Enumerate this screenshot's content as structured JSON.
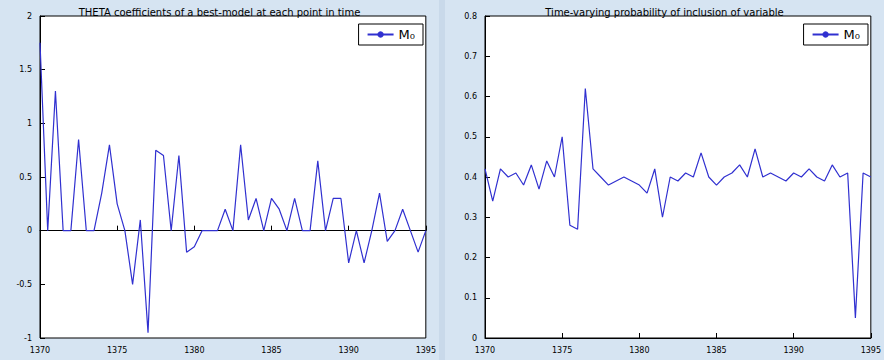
{
  "chart_data": [
    {
      "type": "line",
      "title": "THETA coefficients of a best-model at each point in time",
      "x": [
        1370,
        1370.5,
        1371,
        1371.5,
        1372,
        1372.5,
        1373,
        1373.5,
        1374,
        1374.5,
        1375,
        1375.5,
        1376,
        1376.5,
        1377,
        1377.5,
        1378,
        1378.5,
        1379,
        1379.5,
        1380,
        1380.5,
        1381,
        1381.5,
        1382,
        1382.5,
        1383,
        1383.5,
        1384,
        1384.5,
        1385,
        1385.5,
        1386,
        1386.5,
        1387,
        1387.5,
        1388,
        1388.5,
        1389,
        1389.5,
        1390,
        1390.5,
        1391,
        1391.5,
        1392,
        1392.5,
        1393,
        1393.5,
        1394,
        1394.5,
        1395
      ],
      "series": [
        {
          "name": "M₀",
          "color": "#3030d0",
          "values": [
            1.75,
            0,
            1.3,
            0,
            0,
            0.85,
            0,
            0,
            0.35,
            0.8,
            0.25,
            0,
            -0.5,
            0.1,
            -0.95,
            0.75,
            0.7,
            0,
            0.7,
            -0.2,
            -0.15,
            0,
            0,
            0,
            0.2,
            0,
            0.8,
            0.1,
            0.3,
            0,
            0.3,
            0.2,
            0,
            0.3,
            0,
            0,
            0.65,
            0,
            0.3,
            0.3,
            -0.3,
            0,
            -0.3,
            0,
            0.35,
            -0.1,
            0,
            0.2,
            0,
            -0.2,
            0
          ]
        }
      ],
      "xlim": [
        1370,
        1395
      ],
      "xticks": [
        1370,
        1375,
        1380,
        1385,
        1390,
        1395
      ],
      "ylim": [
        -1,
        2
      ],
      "yticks": [
        -1,
        -0.5,
        0,
        0.5,
        1,
        1.5,
        2
      ],
      "legend": "upper right",
      "grid": false
    },
    {
      "type": "line",
      "title": "Time-varying probability of inclusion of variable",
      "x": [
        1370,
        1370.5,
        1371,
        1371.5,
        1372,
        1372.5,
        1373,
        1373.5,
        1374,
        1374.5,
        1375,
        1375.5,
        1376,
        1376.5,
        1377,
        1377.5,
        1378,
        1378.5,
        1379,
        1379.5,
        1380,
        1380.5,
        1381,
        1381.5,
        1382,
        1382.5,
        1383,
        1383.5,
        1384,
        1384.5,
        1385,
        1385.5,
        1386,
        1386.5,
        1387,
        1387.5,
        1388,
        1388.5,
        1389,
        1389.5,
        1390,
        1390.5,
        1391,
        1391.5,
        1392,
        1392.5,
        1393,
        1393.5,
        1394,
        1394.5,
        1395
      ],
      "series": [
        {
          "name": "M₀",
          "color": "#3030d0",
          "values": [
            0.42,
            0.34,
            0.42,
            0.4,
            0.41,
            0.38,
            0.43,
            0.37,
            0.44,
            0.4,
            0.5,
            0.28,
            0.27,
            0.62,
            0.42,
            0.4,
            0.38,
            0.39,
            0.4,
            0.39,
            0.38,
            0.36,
            0.42,
            0.3,
            0.4,
            0.39,
            0.41,
            0.4,
            0.46,
            0.4,
            0.38,
            0.4,
            0.41,
            0.43,
            0.4,
            0.47,
            0.4,
            0.41,
            0.4,
            0.39,
            0.41,
            0.4,
            0.42,
            0.4,
            0.39,
            0.43,
            0.4,
            0.41,
            0.05,
            0.41,
            0.4
          ]
        }
      ],
      "xlim": [
        1370,
        1395
      ],
      "xticks": [
        1370,
        1375,
        1380,
        1385,
        1390,
        1395
      ],
      "ylim": [
        0,
        0.8
      ],
      "yticks": [
        0,
        0.1,
        0.2,
        0.3,
        0.4,
        0.5,
        0.6,
        0.7,
        0.8
      ],
      "legend": "upper right",
      "grid": false
    }
  ]
}
